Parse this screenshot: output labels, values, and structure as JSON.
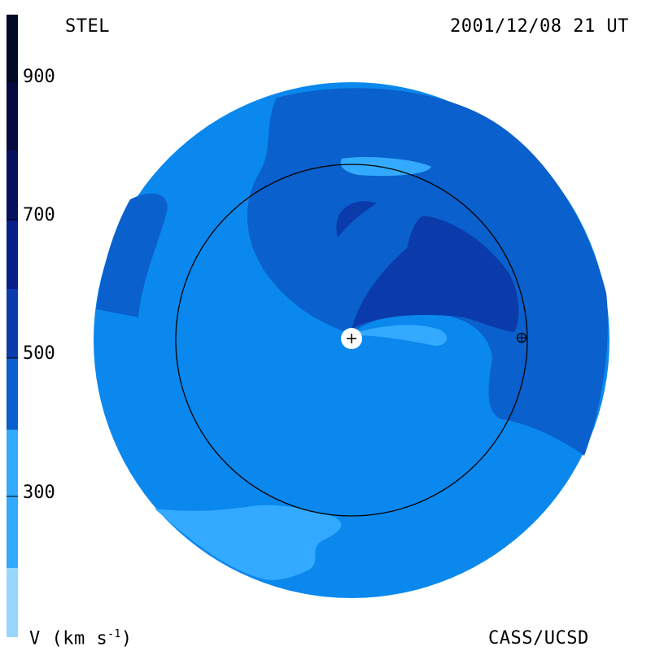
{
  "header": {
    "left_label": "STEL",
    "right_label": "2001/12/08 21 UT"
  },
  "footer": {
    "left_label_prefix": "V (km s",
    "left_label_exp": "-1",
    "left_label_suffix": ")",
    "right_label": "CASS/UCSD"
  },
  "colorbar": {
    "ticks": [
      {
        "label": "300"
      },
      {
        "label": "500"
      },
      {
        "label": "700"
      },
      {
        "label": "900"
      }
    ],
    "colors": {
      "level_0": "#99d6ff",
      "level_1": "#33aaff",
      "level_2": "#0a88ee",
      "level_3": "#0a60cc",
      "level_4": "#0b3aaa",
      "level_5": "#081e88",
      "level_6": "#05105f",
      "level_7": "#020a30"
    }
  },
  "map": {
    "colors": {
      "outer_disk": "#0a88ee",
      "slow_wind": "#33aaff",
      "medium_wind": "#0a60cc",
      "fast_wind": "#0b3aaa",
      "earth_orbit": "#000000",
      "sun": "#ffffff"
    },
    "sun_symbol": "+",
    "earth_symbol": "earth-icon"
  }
}
